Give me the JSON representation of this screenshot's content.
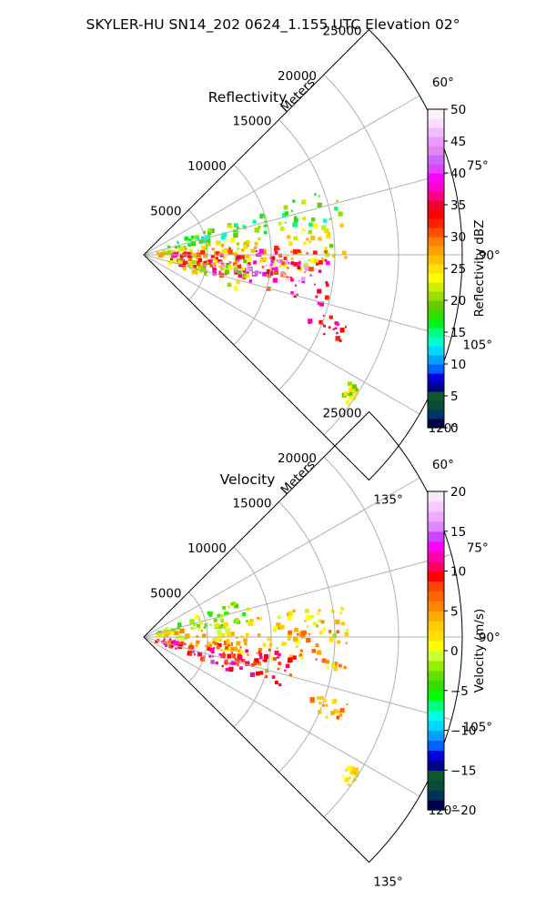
{
  "figure_title": "SKYLER-HU  SN14_202  0624_1.155 UTC Elevation 02°",
  "colors": {
    "wedge_edge": "#000000",
    "grid": "#b0b0b0",
    "reflectivity_scale": [
      "#00004a",
      "#003366",
      "#0a4a3a",
      "#0b5a2c",
      "#00008b",
      "#0000e0",
      "#0060ff",
      "#00a0ff",
      "#00d8ff",
      "#00ffcc",
      "#00ff80",
      "#00f020",
      "#33dd00",
      "#66cc00",
      "#99e000",
      "#ccee00",
      "#ffff00",
      "#ffe000",
      "#ffc000",
      "#ffa000",
      "#ff8000",
      "#ff5000",
      "#ff2000",
      "#ff0000",
      "#ee0033",
      "#ff0080",
      "#ff00cc",
      "#ff00ff",
      "#dd44ff",
      "#cc66ff",
      "#dd88ee",
      "#ee99ff",
      "#f0bbff",
      "#f8ddff",
      "#fff0ff"
    ],
    "velocity_scale": [
      "#00004a",
      "#003355",
      "#0a4a3a",
      "#0b5a2c",
      "#00008b",
      "#0000e0",
      "#0060ff",
      "#00a0ff",
      "#00d8ff",
      "#00ffe0",
      "#00ff80",
      "#00ff00",
      "#33dd00",
      "#66dd00",
      "#99ee00",
      "#ccff33",
      "#ffff00",
      "#ffe000",
      "#ffcc00",
      "#ffaa00",
      "#ff8800",
      "#ff6600",
      "#ff4400",
      "#ff0000",
      "#ff0066",
      "#ff00aa",
      "#ff00ff",
      "#cc44ff",
      "#dd88ff",
      "#eeaaff",
      "#f5ccff",
      "#fbe6ff"
    ]
  },
  "chart_data": [
    {
      "type": "heatmap",
      "subtype": "radar-ppi-sector",
      "title": "Reflectivity",
      "radial_label": "Meters",
      "radial_ticks": [
        5000,
        10000,
        15000,
        20000,
        25000
      ],
      "r_max": 25000,
      "azimuth_range_deg": [
        45,
        135
      ],
      "azimuth_ticks": [
        "60°",
        "75°",
        "90°",
        "105°",
        "120°",
        "135°"
      ],
      "azimuth_tick_values": [
        60,
        75,
        90,
        105,
        120,
        135
      ],
      "grid": true,
      "colorbar": {
        "label": "Reflectivity dBZ",
        "range": [
          0,
          50
        ],
        "ticks": [
          "0",
          "5",
          "10",
          "15",
          "20",
          "25",
          "30",
          "35",
          "40",
          "45",
          "50"
        ]
      },
      "echo_regions": [
        {
          "az": [
            68,
            82
          ],
          "r": [
            2000,
            8500
          ],
          "value": 17
        },
        {
          "az": [
            80,
            95
          ],
          "r": [
            1000,
            16000
          ],
          "value": 24
        },
        {
          "az": [
            85,
            100
          ],
          "r": [
            3000,
            14000
          ],
          "value": 29
        },
        {
          "az": [
            88,
            106
          ],
          "r": [
            2000,
            15000
          ],
          "value": 35
        },
        {
          "az": [
            92,
            100
          ],
          "r": [
            6000,
            13500
          ],
          "value": 43
        },
        {
          "az": [
            96,
            110
          ],
          "r": [
            2000,
            9000
          ],
          "value": 22
        },
        {
          "az": [
            70,
            80
          ],
          "r": [
            9000,
            16000
          ],
          "value": 18
        },
        {
          "az": [
            108,
            114
          ],
          "r": [
            14000,
            17000
          ],
          "value": 36
        },
        {
          "az": [
            122,
            126
          ],
          "r": [
            19000,
            20000
          ],
          "value": 21
        }
      ]
    },
    {
      "type": "heatmap",
      "subtype": "radar-ppi-sector",
      "title": "Velocity",
      "radial_label": "Meters",
      "radial_ticks": [
        5000,
        10000,
        15000,
        20000,
        25000
      ],
      "r_max": 25000,
      "azimuth_range_deg": [
        45,
        135
      ],
      "azimuth_ticks": [
        "60°",
        "75°",
        "90°",
        "105°",
        "120°",
        "135°"
      ],
      "azimuth_tick_values": [
        60,
        75,
        90,
        105,
        120,
        135
      ],
      "grid": true,
      "colorbar": {
        "label": "Velocity (m/s)",
        "range": [
          -20,
          20
        ],
        "ticks": [
          "−20",
          "−15",
          "−10",
          "−5",
          "0",
          "5",
          "10",
          "15",
          "20"
        ]
      },
      "echo_regions": [
        {
          "az": [
            68,
            84
          ],
          "r": [
            1000,
            8500
          ],
          "value": -2
        },
        {
          "az": [
            80,
            92
          ],
          "r": [
            1000,
            16000
          ],
          "value": 2
        },
        {
          "az": [
            88,
            100
          ],
          "r": [
            3000,
            16500
          ],
          "value": 4
        },
        {
          "az": [
            95,
            110
          ],
          "r": [
            1000,
            12000
          ],
          "value": 9
        },
        {
          "az": [
            100,
            112
          ],
          "r": [
            1500,
            8000
          ],
          "value": 11
        },
        {
          "az": [
            108,
            114
          ],
          "r": [
            14000,
            17000
          ],
          "value": 5
        },
        {
          "az": [
            122,
            126
          ],
          "r": [
            19000,
            20000
          ],
          "value": 2
        }
      ]
    }
  ]
}
